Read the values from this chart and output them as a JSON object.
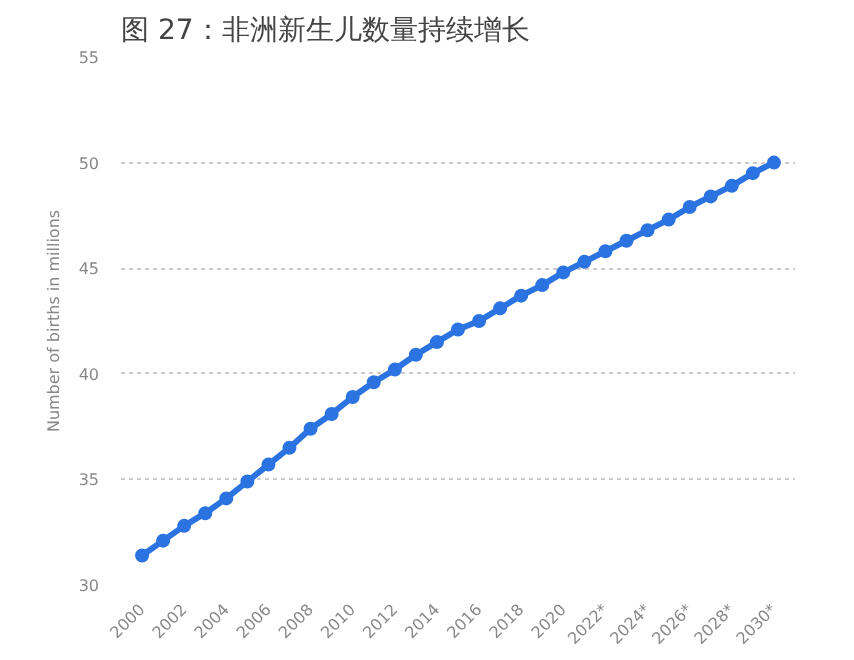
{
  "chart_data": {
    "type": "line",
    "title": "图 27：非洲新生儿数量持续增长",
    "ylabel": "Number of births in millions",
    "categories": [
      "2000",
      null,
      "2002",
      null,
      "2004",
      null,
      "2006",
      null,
      "2008",
      null,
      "2010",
      null,
      "2012",
      null,
      "2014",
      null,
      "2016",
      null,
      "2018",
      null,
      "2020",
      null,
      "2022*",
      null,
      "2024*",
      null,
      "2026*",
      null,
      "2028*",
      null,
      "2030*"
    ],
    "series": [
      {
        "color": "#2b73e0",
        "values": [
          31.4,
          32.1,
          32.8,
          33.4,
          34.1,
          34.9,
          35.7,
          36.5,
          37.4,
          38.1,
          38.9,
          39.6,
          40.2,
          40.9,
          41.5,
          42.1,
          42.5,
          43.1,
          43.7,
          44.2,
          44.8,
          45.3,
          45.8,
          46.3,
          46.8,
          47.3,
          47.9,
          48.4,
          48.9,
          49.5,
          50.0
        ]
      }
    ],
    "ylim": [
      30,
      55
    ],
    "yticks": [
      30,
      35,
      40,
      45,
      50,
      55
    ],
    "grid": "y",
    "marker": "circle",
    "line_style": "solid"
  }
}
